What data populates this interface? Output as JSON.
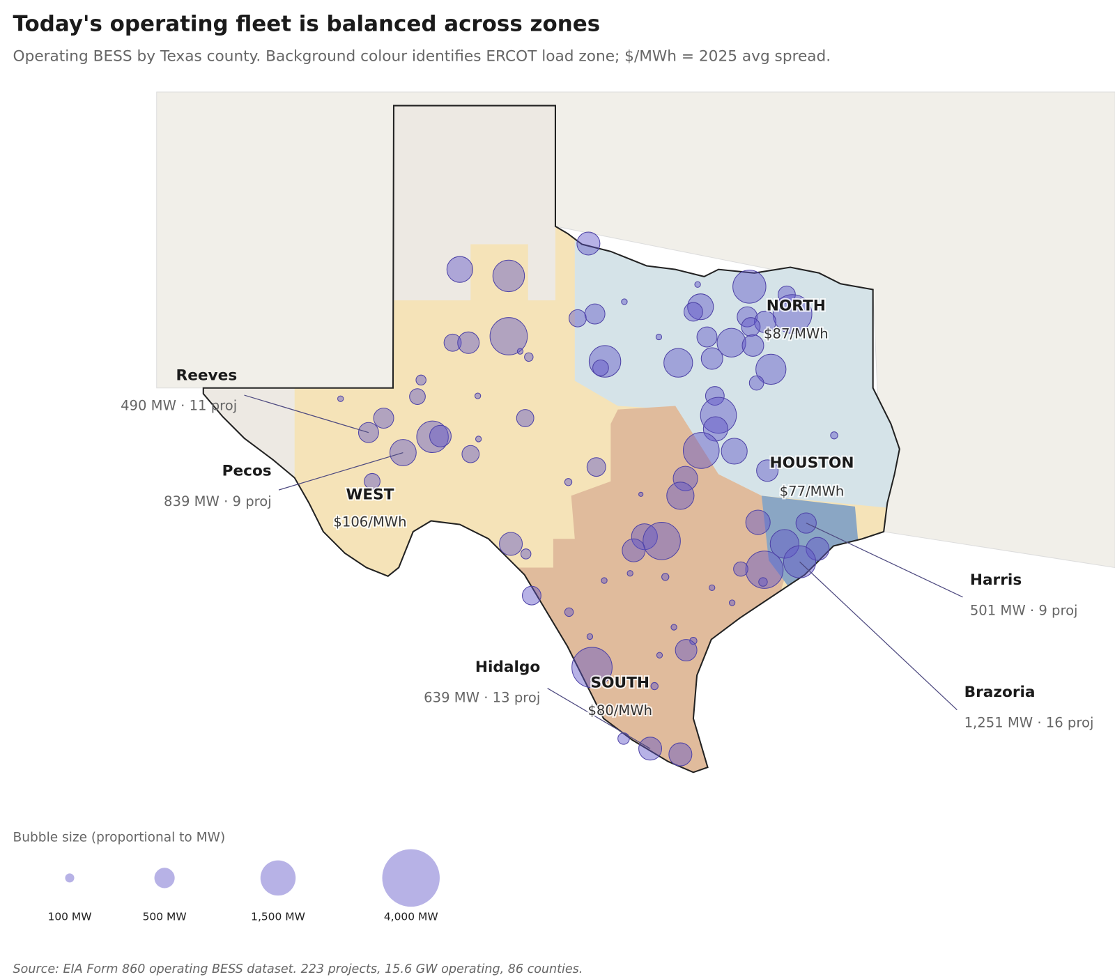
{
  "title": "Today's operating fleet is balanced across zones",
  "subtitle": "Operating BESS by Texas county. Background colour identifies ERCOT load zone; $/MWh = 2025 avg spread.",
  "zones": [
    {
      "name": "NORTH",
      "spread": "$87/MWh"
    },
    {
      "name": "HOUSTON",
      "spread": "$77/MWh"
    },
    {
      "name": "WEST",
      "spread": "$106/MWh"
    },
    {
      "name": "SOUTH",
      "spread": "$80/MWh"
    }
  ],
  "chart_data": {
    "type": "bubble-map",
    "annotations": [
      {
        "name": "Reeves",
        "value": 490,
        "value_label": "490 MW · 11 proj"
      },
      {
        "name": "Pecos",
        "value": 839,
        "value_label": "839 MW · 9 proj"
      },
      {
        "name": "Harris",
        "value": 501,
        "value_label": "501 MW · 9 proj"
      },
      {
        "name": "Brazoria",
        "value": 1251,
        "value_label": "1,251 MW · 16 proj"
      },
      {
        "name": "Hidalgo",
        "value": 639,
        "value_label": "639 MW · 13 proj"
      }
    ],
    "size_legend": {
      "title": "Bubble size (proportional to MW)",
      "values": [
        100,
        500,
        1500,
        4000
      ],
      "value_labels": [
        "100 MW",
        "500 MW",
        "1,500 MW",
        "4,000 MW"
      ]
    }
  },
  "source": "Source: EIA Form 860 operating BESS dataset. 223 projects, 15.6 GW operating, 86 counties."
}
